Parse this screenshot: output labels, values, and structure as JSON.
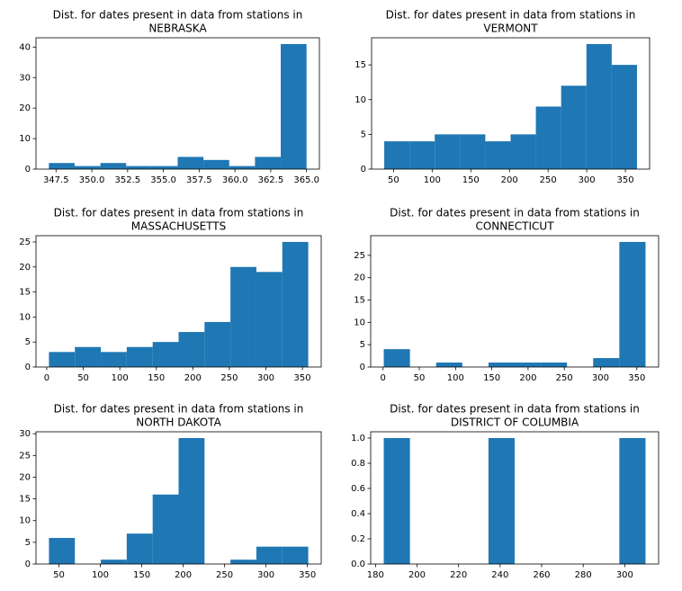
{
  "chart_data": [
    {
      "type": "histogram",
      "title": [
        "Dist. for dates present in data from stations in",
        "NEBRASKA"
      ],
      "color": "#1f77b4",
      "bins": [
        347,
        348.8,
        350.6,
        352.4,
        354.2,
        356,
        357.8,
        359.6,
        361.4,
        363.2,
        365
      ],
      "values": [
        2,
        1,
        2,
        1,
        1,
        4,
        3,
        1,
        4,
        41
      ],
      "xlim": [
        346.1,
        365.9
      ],
      "xticks": [
        347.5,
        {
          "value": 350,
          "label": "350.0"
        },
        352.5,
        {
          "value": 355,
          "label": "355.0"
        },
        357.5,
        {
          "value": 360,
          "label": "360.0"
        },
        362.5,
        {
          "value": 365,
          "label": "365.0"
        }
      ],
      "ylim": [
        0,
        43.05
      ],
      "yticks": [
        0,
        10,
        20,
        30,
        40
      ]
    },
    {
      "type": "histogram",
      "title": [
        "Dist. for dates present in data from stations in",
        "VERMONT"
      ],
      "color": "#1f77b4",
      "bins": [
        38,
        70.7,
        103.4,
        136.1,
        168.8,
        201.5,
        234.2,
        266.9,
        299.6,
        332.3,
        365
      ],
      "values": [
        4,
        4,
        5,
        5,
        4,
        5,
        9,
        12,
        18,
        15
      ],
      "xlim": [
        21.65,
        381.35
      ],
      "xticks": [
        50,
        100,
        150,
        200,
        250,
        300,
        350
      ],
      "ylim": [
        0,
        18.9
      ],
      "yticks": [
        0,
        5,
        10,
        15
      ]
    },
    {
      "type": "histogram",
      "title": [
        "Dist. for dates present in data from stations in",
        "MASSACHUSETTS"
      ],
      "color": "#1f77b4",
      "bins": [
        3,
        38.5,
        74,
        109.5,
        145,
        180.5,
        216,
        251.5,
        287,
        322.5,
        358
      ],
      "values": [
        3,
        4,
        3,
        4,
        5,
        7,
        9,
        20,
        19,
        25
      ],
      "xlim": [
        -14.75,
        375.75
      ],
      "xticks": [
        0,
        50,
        100,
        150,
        200,
        250,
        300,
        350
      ],
      "ylim": [
        0,
        26.25
      ],
      "yticks": [
        0,
        5,
        10,
        15,
        20,
        25
      ]
    },
    {
      "type": "histogram",
      "title": [
        "Dist. for dates present in data from stations in",
        "CONNECTICUT"
      ],
      "color": "#1f77b4",
      "bins": [
        1,
        37.1,
        73.2,
        109.3,
        145.4,
        181.5,
        217.6,
        253.7,
        289.8,
        325.9,
        362
      ],
      "values": [
        4,
        0,
        1,
        0,
        1,
        1,
        1,
        0,
        2,
        28
      ],
      "xlim": [
        -17.05,
        380.05
      ],
      "xticks": [
        0,
        50,
        100,
        150,
        200,
        250,
        300,
        350
      ],
      "ylim": [
        0,
        29.4
      ],
      "yticks": [
        0,
        5,
        10,
        15,
        20,
        25
      ]
    },
    {
      "type": "histogram",
      "title": [
        "Dist. for dates present in data from stations in",
        "NORTH DAKOTA"
      ],
      "color": "#1f77b4",
      "bins": [
        38,
        69.3,
        100.6,
        131.9,
        163.2,
        194.5,
        225.8,
        257.1,
        288.4,
        319.7,
        351
      ],
      "values": [
        6,
        0,
        1,
        7,
        16,
        29,
        0,
        1,
        4,
        4
      ],
      "xlim": [
        22.35,
        366.65
      ],
      "xticks": [
        50,
        100,
        150,
        200,
        250,
        300,
        350
      ],
      "ylim": [
        0,
        30.45
      ],
      "yticks": [
        0,
        5,
        10,
        15,
        20,
        25,
        30
      ]
    },
    {
      "type": "histogram",
      "title": [
        "Dist. for dates present in data from stations in",
        "DISTRICT OF COLUMBIA"
      ],
      "color": "#1f77b4",
      "bins": [
        184,
        196.6,
        209.2,
        221.8,
        234.4,
        247,
        259.6,
        272.2,
        284.8,
        297.4,
        310
      ],
      "values": [
        1,
        0,
        0,
        0,
        1,
        0,
        0,
        0,
        0,
        1
      ],
      "xlim": [
        177.7,
        316.3
      ],
      "xticks": [
        180,
        200,
        220,
        240,
        260,
        280,
        300
      ],
      "ylim": [
        0,
        1.05
      ],
      "yticks": [
        {
          "value": 0,
          "label": "0.0"
        },
        0.2,
        0.4,
        0.6,
        0.8,
        {
          "value": 1,
          "label": "1.0"
        }
      ]
    }
  ]
}
